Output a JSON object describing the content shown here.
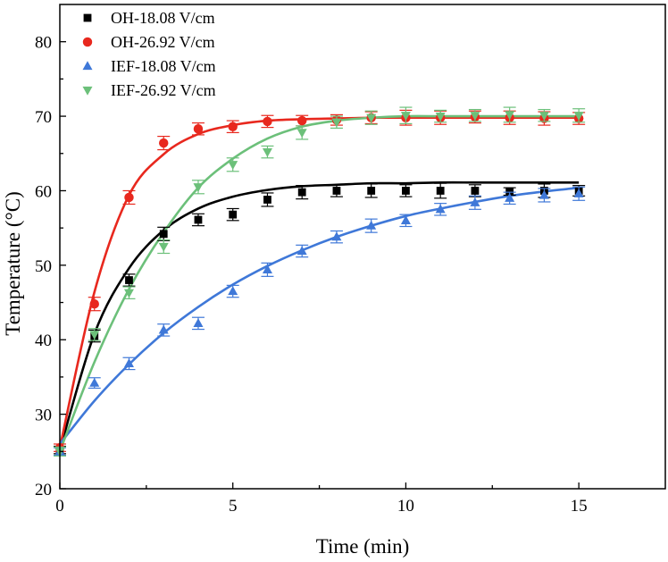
{
  "chart_data": {
    "type": "scatter",
    "xlabel": "Time (min)",
    "ylabel": "Temperature (°C)",
    "xlim": [
      0,
      17.5
    ],
    "ylim": [
      20,
      85
    ],
    "xticks": [
      0,
      5,
      10,
      15
    ],
    "yticks": [
      20,
      30,
      40,
      50,
      60,
      70,
      80
    ],
    "grid": false,
    "legend_position": "top-left",
    "series": [
      {
        "name": "OH-18.08 V/cm",
        "marker": "square",
        "color": "#000000",
        "x": [
          0,
          1,
          2,
          3,
          4,
          5,
          6,
          7,
          8,
          9,
          10,
          11,
          12,
          13,
          14,
          15
        ],
        "y": [
          25.2,
          40.5,
          48.0,
          54.2,
          56.1,
          56.8,
          58.8,
          59.8,
          60.0,
          60.0,
          60.0,
          60.0,
          60.0,
          59.9,
          60.0,
          60.0
        ],
        "err": [
          0.5,
          0.8,
          0.8,
          0.9,
          0.8,
          0.8,
          0.9,
          0.9,
          0.8,
          0.9,
          0.8,
          1.0,
          0.8,
          0.5,
          0.9,
          0.7
        ],
        "fit": [
          25.2,
          40.8,
          49.6,
          54.7,
          57.6,
          59.2,
          60.1,
          60.6,
          60.8,
          61.0,
          61.0,
          61.1,
          61.1,
          61.1,
          61.1,
          61.1
        ]
      },
      {
        "name": "OH-26.92 V/cm",
        "marker": "circle",
        "color": "#e8281e",
        "x": [
          0,
          1,
          2,
          3,
          4,
          5,
          6,
          7,
          8,
          9,
          10,
          11,
          12,
          13,
          14,
          15
        ],
        "y": [
          25.5,
          44.8,
          59.1,
          66.4,
          68.3,
          68.6,
          69.3,
          69.4,
          69.5,
          69.8,
          69.8,
          69.8,
          69.9,
          69.8,
          69.7,
          69.7
        ],
        "err": [
          0.5,
          0.9,
          0.9,
          0.9,
          0.8,
          0.8,
          0.8,
          0.7,
          0.7,
          0.8,
          1.0,
          0.9,
          0.8,
          0.9,
          0.9,
          0.8
        ],
        "fit": [
          25.5,
          46.4,
          59.4,
          64.9,
          67.6,
          68.8,
          69.4,
          69.6,
          69.7,
          69.8,
          69.8,
          69.8,
          69.8,
          69.8,
          69.8,
          69.8
        ]
      },
      {
        "name": "IEF-18.08 V/cm",
        "marker": "triangle-up",
        "color": "#3f78d8",
        "x": [
          0,
          1,
          2,
          3,
          4,
          5,
          6,
          7,
          8,
          9,
          10,
          11,
          12,
          13,
          14,
          15
        ],
        "y": [
          25.0,
          34.2,
          36.8,
          41.3,
          42.2,
          46.5,
          49.4,
          51.9,
          53.8,
          55.3,
          56.0,
          57.5,
          58.4,
          59.0,
          59.4,
          59.6
        ],
        "err": [
          0.5,
          0.7,
          0.8,
          0.8,
          0.8,
          0.8,
          0.9,
          0.8,
          0.8,
          0.9,
          0.8,
          0.8,
          0.9,
          0.8,
          0.9,
          0.9
        ],
        "fit": [
          26.0,
          31.8,
          36.7,
          40.9,
          44.4,
          47.4,
          49.9,
          52.0,
          53.8,
          55.3,
          56.6,
          57.6,
          58.5,
          59.3,
          59.9,
          60.4
        ]
      },
      {
        "name": "IEF-26.92 V/cm",
        "marker": "triangle-down",
        "color": "#6cc07a",
        "x": [
          0,
          1,
          2,
          3,
          4,
          5,
          6,
          7,
          8,
          9,
          10,
          11,
          12,
          13,
          14,
          15
        ],
        "y": [
          25.0,
          40.7,
          46.3,
          52.5,
          60.5,
          63.5,
          65.2,
          67.8,
          69.2,
          69.8,
          70.1,
          70.0,
          70.1,
          70.2,
          70.1,
          70.1
        ],
        "err": [
          0.6,
          0.8,
          0.8,
          0.9,
          0.9,
          0.9,
          0.8,
          0.9,
          0.8,
          0.9,
          1.1,
          0.8,
          0.8,
          1.0,
          0.8,
          0.9
        ],
        "fit": [
          25.0,
          37.0,
          46.8,
          54.4,
          60.4,
          64.3,
          67.0,
          68.6,
          69.4,
          69.8,
          70.0,
          70.0,
          70.0,
          70.0,
          70.0,
          70.0
        ]
      }
    ]
  }
}
